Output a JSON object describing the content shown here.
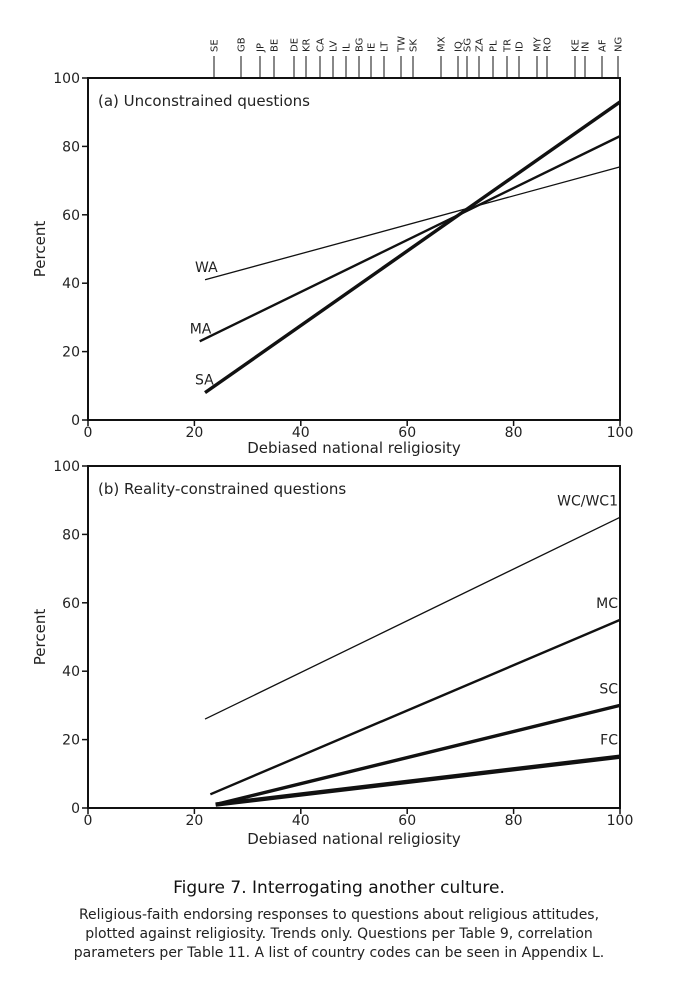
{
  "colors": {
    "ink": "#111111",
    "axis": "#222222",
    "background": "#ffffff"
  },
  "countries": [
    "SE",
    "GB",
    "JP",
    "BE",
    "DE",
    "KR",
    "CA",
    "LV",
    "IL",
    "BG",
    "IE",
    "LT",
    "TW",
    "SK",
    "MX",
    "IQ",
    "SG",
    "ZA",
    "PL",
    "TR",
    "ID",
    "MY",
    "RO",
    "KE",
    "IN",
    "AF",
    "NG"
  ],
  "chart_data": [
    {
      "type": "line",
      "title": "(a) Unconstrained questions",
      "xlabel": "Debiased national religiosity",
      "ylabel": "Percent",
      "xlim": [
        0,
        100
      ],
      "ylim": [
        0,
        100
      ],
      "xticks": [
        0,
        20,
        40,
        60,
        80,
        100
      ],
      "yticks": [
        0,
        20,
        40,
        60,
        80,
        100
      ],
      "series": [
        {
          "name": "WA",
          "weight": "thin",
          "x": [
            22,
            100
          ],
          "y": [
            41,
            74
          ]
        },
        {
          "name": "MA",
          "weight": "medium",
          "x": [
            21,
            100
          ],
          "y": [
            23,
            83
          ]
        },
        {
          "name": "SA",
          "weight": "thick",
          "x": [
            22,
            100
          ],
          "y": [
            8,
            93
          ]
        }
      ]
    },
    {
      "type": "line",
      "title": "(b) Reality-constrained questions",
      "xlabel": "Debiased national religiosity",
      "ylabel": "Percent",
      "xlim": [
        0,
        100
      ],
      "ylim": [
        0,
        100
      ],
      "xticks": [
        0,
        20,
        40,
        60,
        80,
        100
      ],
      "yticks": [
        0,
        20,
        40,
        60,
        80,
        100
      ],
      "series": [
        {
          "name": "WC/WC1",
          "weight": "thin",
          "x": [
            22,
            100
          ],
          "y": [
            26,
            85
          ]
        },
        {
          "name": "MC",
          "weight": "medium",
          "x": [
            23,
            100
          ],
          "y": [
            4,
            55
          ]
        },
        {
          "name": "SC",
          "weight": "thick",
          "x": [
            24,
            100
          ],
          "y": [
            1,
            30
          ]
        },
        {
          "name": "FC",
          "weight": "heavy",
          "x": [
            24,
            100
          ],
          "y": [
            1,
            15
          ]
        }
      ]
    }
  ],
  "caption": {
    "title": "Figure 7. Interrogating another culture.",
    "text": "Religious-faith endorsing responses to questions about religious attitudes, plotted against religiosity. Trends only. Questions per Table 9, correlation parameters per Table 11. A list of country codes can be seen in Appendix L."
  }
}
